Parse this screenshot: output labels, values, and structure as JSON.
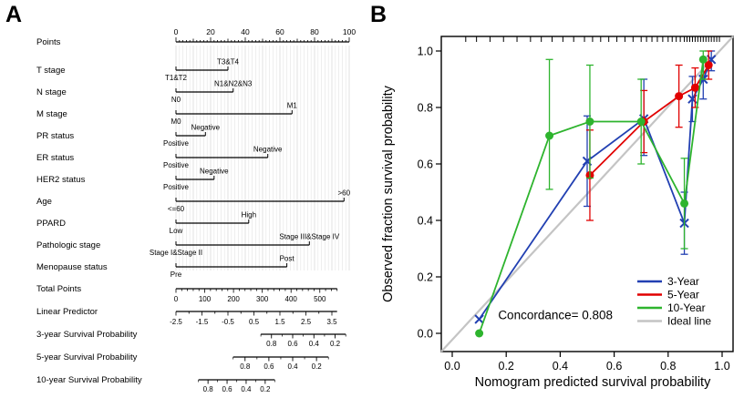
{
  "panels": {
    "a_label": "A",
    "b_label": "B"
  },
  "colors": {
    "blue": "#2240b2",
    "red": "#e10000",
    "green": "#2eb42e",
    "ideal": "#c4c4c4",
    "grid_light": "#e4e4e4",
    "grid_dark": "#cfcfcf"
  },
  "chart_data": [
    {
      "type": "nomogram",
      "points_axis": {
        "label": "Points",
        "range": [
          0,
          100
        ],
        "ticks": [
          0,
          20,
          40,
          60,
          80,
          100
        ]
      },
      "variables": [
        {
          "label": "T stage",
          "start": 0,
          "end": 30,
          "start_label": "T1&T2",
          "end_label": "T3&T4"
        },
        {
          "label": "N stage",
          "start": 0,
          "end": 33,
          "start_label": "N0",
          "end_label": "N1&N2&N3"
        },
        {
          "label": "M stage",
          "start": 0,
          "end": 67,
          "start_label": "M0",
          "end_label": "M1"
        },
        {
          "label": "PR status",
          "start": 0,
          "end": 17,
          "start_label": "Positive",
          "end_label": "Negative"
        },
        {
          "label": "ER status",
          "start": 0,
          "end": 53,
          "start_label": "Positive",
          "end_label": "Negative"
        },
        {
          "label": "HER2 status",
          "start": 0,
          "end": 22,
          "start_label": "Positive",
          "end_label": "Negative"
        },
        {
          "label": "Age",
          "start": 0,
          "end": 97,
          "start_label": "<=60",
          "end_label": ">60"
        },
        {
          "label": "PPARD",
          "start": 0,
          "end": 42,
          "start_label": "Low",
          "end_label": "High"
        },
        {
          "label": "Pathologic stage",
          "start": 0,
          "end": 77,
          "start_label": "Stage I&Stage II",
          "end_label": "Stage III&Stage IV"
        },
        {
          "label": "Menopause status",
          "start": 0,
          "end": 64,
          "start_label": "Pre",
          "end_label": "Post"
        }
      ],
      "total_points_axis": {
        "label": "Total Points",
        "range": [
          0,
          560
        ],
        "ticks": [
          0,
          100,
          200,
          300,
          400,
          500
        ],
        "minor_step": 20,
        "points_span": [
          0,
          93
        ]
      },
      "linear_predictor_axis": {
        "label": "Linear Predictor",
        "range": [
          -2.5,
          3.7
        ],
        "ticks": [
          -2.5,
          -1.5,
          -0.5,
          0.5,
          1.5,
          2.5,
          3.5
        ],
        "minor_step": 0.5,
        "points_span": [
          0,
          93
        ]
      },
      "survival_axes": [
        {
          "label": "3-year Survival Probability",
          "ticks": [
            0.8,
            0.6,
            0.4,
            0.2
          ],
          "points_span": [
            49,
            98
          ]
        },
        {
          "label": "5-year Survival Probability",
          "ticks": [
            0.8,
            0.6,
            0.4,
            0.2
          ],
          "points_span": [
            33,
            88
          ]
        },
        {
          "label": "10-year Survival Probability",
          "ticks": [
            0.8,
            0.6,
            0.4,
            0.2
          ],
          "points_span": [
            13,
            57
          ]
        }
      ]
    },
    {
      "type": "line",
      "xlabel": "Nomogram predicted survival probability",
      "ylabel": "Observed fraction survival probability",
      "xlim": [
        0,
        1
      ],
      "ylim": [
        0,
        1
      ],
      "xticks": [
        0,
        0.2,
        0.4,
        0.6,
        0.8,
        1
      ],
      "yticks": [
        0,
        0.2,
        0.4,
        0.6,
        0.8,
        1
      ],
      "annotation": "Concordance= 0.808",
      "rug_x": [
        0.05,
        0.09,
        0.14,
        0.19,
        0.24,
        0.29,
        0.33,
        0.37,
        0.41,
        0.45,
        0.49,
        0.52,
        0.55,
        0.58,
        0.61,
        0.64,
        0.67,
        0.7,
        0.72,
        0.74,
        0.76,
        0.78,
        0.8,
        0.815,
        0.83,
        0.845,
        0.86,
        0.87,
        0.88,
        0.89,
        0.9,
        0.91,
        0.92,
        0.93,
        0.94,
        0.95,
        0.96,
        0.97,
        0.98,
        0.99
      ],
      "series": [
        {
          "name": "3-Year",
          "color": "#2240b2",
          "marker": "x",
          "points": [
            {
              "x": 0.1,
              "y": 0.05
            },
            {
              "x": 0.5,
              "y": 0.61,
              "lo": 0.45,
              "hi": 0.77
            },
            {
              "x": 0.71,
              "y": 0.76,
              "lo": 0.63,
              "hi": 0.9
            },
            {
              "x": 0.86,
              "y": 0.39,
              "lo": 0.28,
              "hi": 0.5
            },
            {
              "x": 0.89,
              "y": 0.83,
              "lo": 0.75,
              "hi": 0.91
            },
            {
              "x": 0.93,
              "y": 0.9,
              "lo": 0.83,
              "hi": 0.97
            },
            {
              "x": 0.96,
              "y": 0.97,
              "lo": 0.93,
              "hi": 1.0
            }
          ]
        },
        {
          "name": "5-Year",
          "color": "#e10000",
          "marker": "circle",
          "points": [
            {
              "x": 0.51,
              "y": 0.56,
              "lo": 0.4,
              "hi": 0.72
            },
            {
              "x": 0.71,
              "y": 0.75,
              "lo": 0.64,
              "hi": 0.86
            },
            {
              "x": 0.84,
              "y": 0.84,
              "lo": 0.73,
              "hi": 0.95
            },
            {
              "x": 0.9,
              "y": 0.87,
              "lo": 0.8,
              "hi": 0.94
            },
            {
              "x": 0.95,
              "y": 0.95,
              "lo": 0.9,
              "hi": 1.0
            }
          ]
        },
        {
          "name": "10-Year",
          "color": "#2eb42e",
          "marker": "circle",
          "points": [
            {
              "x": 0.1,
              "y": 0.0
            },
            {
              "x": 0.36,
              "y": 0.7,
              "lo": 0.51,
              "hi": 0.97
            },
            {
              "x": 0.51,
              "y": 0.75,
              "lo": 0.55,
              "hi": 0.95
            },
            {
              "x": 0.7,
              "y": 0.75,
              "lo": 0.6,
              "hi": 0.9
            },
            {
              "x": 0.86,
              "y": 0.46,
              "lo": 0.3,
              "hi": 0.62
            },
            {
              "x": 0.93,
              "y": 0.97,
              "lo": 0.9,
              "hi": 1.0
            }
          ]
        }
      ],
      "legend": [
        {
          "label": "3-Year",
          "color": "#2240b2"
        },
        {
          "label": "5-Year",
          "color": "#e10000"
        },
        {
          "label": "10-Year",
          "color": "#2eb42e"
        },
        {
          "label": "Ideal line",
          "color": "#c4c4c4"
        }
      ]
    }
  ]
}
